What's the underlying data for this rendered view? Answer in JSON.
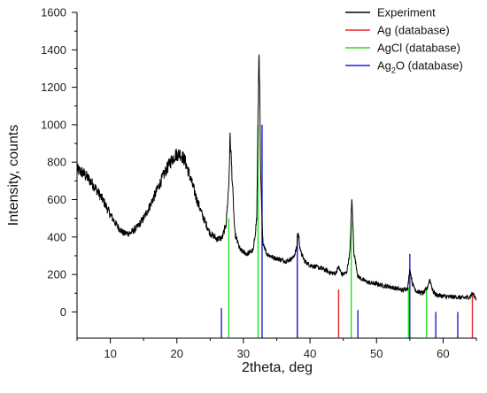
{
  "chart_data": {
    "type": "line",
    "xlabel": "2theta, deg",
    "ylabel": "Intensity, counts",
    "xlim": [
      5,
      65
    ],
    "ylim": [
      -140,
      1600
    ],
    "x_ticks": [
      10,
      20,
      30,
      40,
      50,
      60
    ],
    "y_ticks": [
      0,
      200,
      400,
      600,
      800,
      1000,
      1200,
      1400,
      1600
    ],
    "grid": false,
    "legend_position": "top-right",
    "legend": [
      {
        "label": "Experiment",
        "color": "#000000"
      },
      {
        "label": "Ag (database)",
        "color": "#e8262c"
      },
      {
        "label": "AgCl (database)",
        "color": "#26e026"
      },
      {
        "label_parts": [
          "Ag",
          "2",
          "O (database)"
        ],
        "label": "Ag2O (database)",
        "color": "#1f1fd6"
      }
    ],
    "series": [
      {
        "name": "Experiment",
        "color": "#000000",
        "x": [
          5,
          6,
          7,
          8,
          9,
          10,
          11,
          12,
          13,
          14,
          15,
          16,
          17,
          18,
          19,
          19.8,
          20.5,
          21.2,
          22,
          23,
          24,
          25,
          26,
          26.8,
          27.4,
          27.8,
          28.0,
          28.3,
          28.7,
          29.5,
          30.5,
          31.5,
          32.0,
          32.35,
          32.6,
          32.9,
          33.5,
          34.5,
          35.5,
          36.5,
          37.5,
          38.0,
          38.25,
          38.6,
          39.2,
          40,
          41,
          42,
          43,
          43.8,
          44.3,
          44.8,
          45.5,
          46.0,
          46.3,
          46.6,
          47.2,
          48,
          49,
          50,
          51,
          52,
          53,
          54,
          54.7,
          55.0,
          55.4,
          56,
          57,
          57.6,
          58.0,
          58.5,
          59,
          60,
          61,
          62,
          63,
          64,
          64.4,
          65
        ],
        "y": [
          760,
          740,
          700,
          650,
          590,
          520,
          460,
          420,
          420,
          450,
          500,
          570,
          650,
          730,
          800,
          840,
          845,
          810,
          720,
          600,
          500,
          420,
          390,
          395,
          470,
          680,
          940,
          720,
          420,
          330,
          310,
          330,
          500,
          1440,
          700,
          380,
          310,
          290,
          280,
          270,
          290,
          340,
          420,
          320,
          270,
          250,
          240,
          230,
          210,
          205,
          240,
          200,
          210,
          320,
          610,
          320,
          190,
          170,
          155,
          150,
          140,
          135,
          125,
          115,
          130,
          230,
          150,
          110,
          100,
          125,
          175,
          110,
          90,
          85,
          80,
          80,
          75,
          80,
          100,
          70
        ]
      }
    ],
    "reference_sticks": [
      {
        "name": "Ag (database)",
        "color": "#e8262c",
        "x": [
          38.1,
          44.3,
          64.4
        ],
        "y": [
          420,
          120,
          100
        ]
      },
      {
        "name": "AgCl (database)",
        "color": "#26e026",
        "x": [
          27.8,
          32.2,
          46.2,
          54.8,
          57.5
        ],
        "y": [
          500,
          1000,
          480,
          130,
          130
        ]
      },
      {
        "name": "Ag2O (database)",
        "color": "#1f1fd6",
        "x": [
          26.7,
          32.8,
          38.1,
          47.2,
          55.0,
          58.9,
          62.2
        ],
        "y": [
          20,
          1000,
          410,
          10,
          310,
          0,
          0
        ]
      }
    ]
  }
}
